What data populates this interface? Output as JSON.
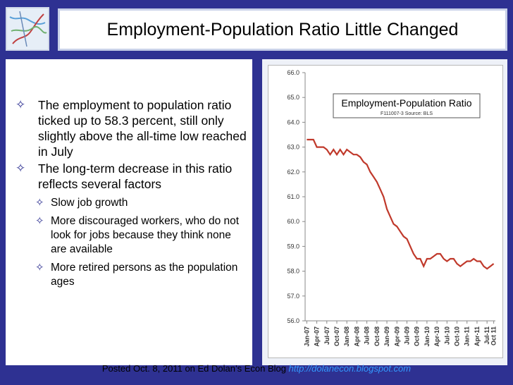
{
  "slide": {
    "title": "Employment-Population Ratio Little Changed",
    "bullets": [
      {
        "level": 1,
        "text": "The employment to population ratio ticked up to 58.3 percent, still only slightly above the all-time low reached in July"
      },
      {
        "level": 1,
        "text": "The long-term decrease in this ratio reflects several factors"
      },
      {
        "level": 2,
        "text": "Slow job growth"
      },
      {
        "level": 2,
        "text": "More discouraged workers, who do not look for jobs because they think none are available"
      },
      {
        "level": 2,
        "text": "More retired persons as the population ages"
      }
    ],
    "bullet_icon": "diamond-bullet-icon",
    "footer_prefix": "Posted Oct. 8, 2011 on Ed Dolan’s Econ Blog",
    "footer_link": "http://dolanecon.blogspot.com"
  },
  "colors": {
    "background": "#2e3192",
    "series": "#c0392b",
    "link": "#3399ff"
  },
  "chart_data": {
    "type": "line",
    "title": "Employment-Population Ratio",
    "subtitle": "F111007-3 Source: BLS",
    "ylim": [
      56.0,
      66.0
    ],
    "yticks": [
      "56.0",
      "57.0",
      "58.0",
      "59.0",
      "60.0",
      "61.0",
      "62.0",
      "63.0",
      "64.0",
      "65.0",
      "66.0"
    ],
    "xticks": [
      "Jan-07",
      "Apr-07",
      "Jul-07",
      "Oct-07",
      "Jan-08",
      "Apr-08",
      "Jul-08",
      "Oct-08",
      "Jan-09",
      "Apr-09",
      "Jul-09",
      "Oct-09",
      "Jan-10",
      "Apr-10",
      "Jul-10",
      "Oct-10",
      "Jan-11",
      "Apr-11",
      "Jul-11",
      "Oct 11"
    ],
    "series": [
      {
        "values": [
          63.3,
          63.3,
          63.3,
          63.0,
          63.0,
          63.0,
          62.9,
          62.7,
          62.9,
          62.7,
          62.9,
          62.7,
          62.9,
          62.8,
          62.7,
          62.7,
          62.6,
          62.4,
          62.3,
          62.0,
          61.8,
          61.6,
          61.3,
          61.0,
          60.5,
          60.2,
          59.9,
          59.8,
          59.6,
          59.4,
          59.3,
          59.0,
          58.7,
          58.5,
          58.5,
          58.2,
          58.5,
          58.5,
          58.6,
          58.7,
          58.7,
          58.5,
          58.4,
          58.5,
          58.5,
          58.3,
          58.2,
          58.3,
          58.4,
          58.4,
          58.5,
          58.4,
          58.4,
          58.2,
          58.1,
          58.2,
          58.3
        ]
      }
    ]
  }
}
